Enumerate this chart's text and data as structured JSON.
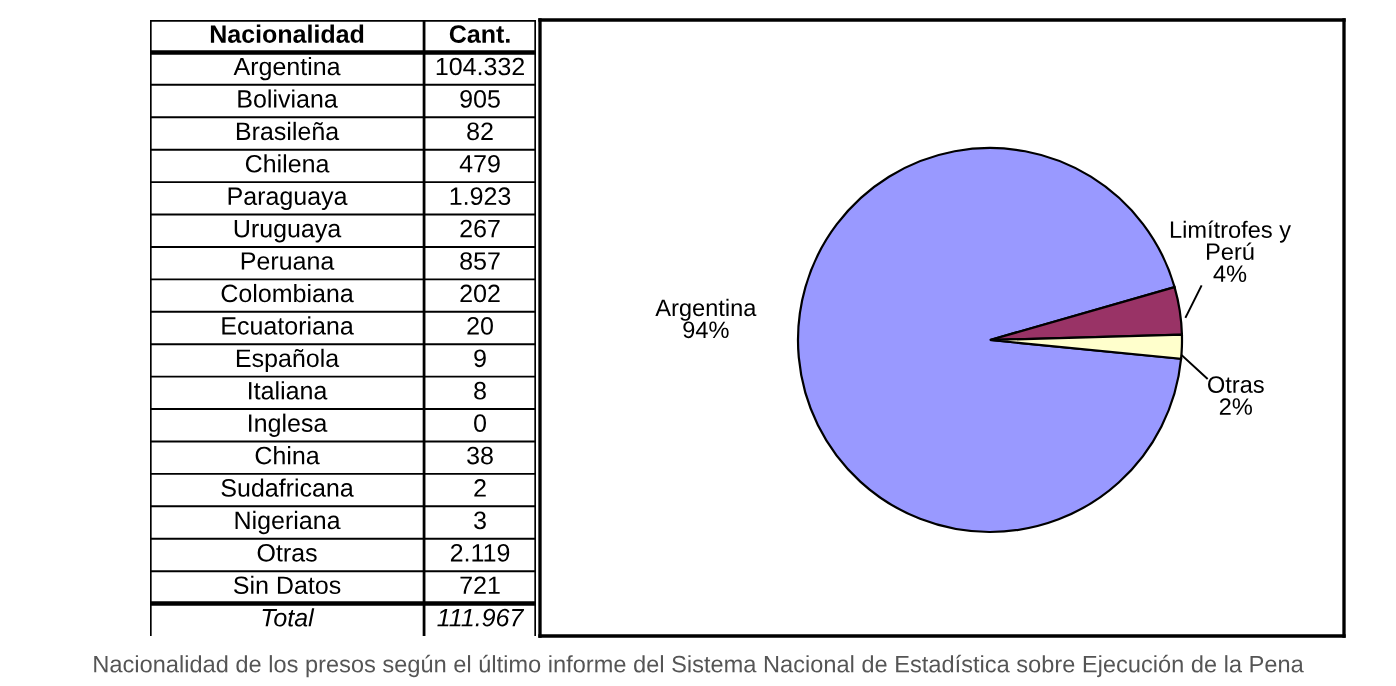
{
  "chart_data": [
    {
      "type": "other",
      "annotations": [
        "Nacionalidad",
        "Cant."
      ],
      "categories": [
        "Argentina",
        "Boliviana",
        "Brasileña",
        "Chilena",
        "Paraguaya",
        "Uruguaya",
        "Peruana",
        "Colombiana",
        "Ecuatoriana",
        "Española",
        "Italiana",
        "Inglesa",
        "China",
        "Sudafricana",
        "Nigeriana",
        "Otras",
        "Sin Datos",
        "Total"
      ],
      "value_labels": [
        "104.332",
        "905",
        "82",
        "479",
        "1.923",
        "267",
        "857",
        "202",
        "20",
        "9",
        "8",
        "0",
        "38",
        "2",
        "3",
        "2.119",
        "721",
        "111.967"
      ]
    },
    {
      "type": "pie",
      "categories": [
        "Argentina",
        "Limítrofes y\nPerú",
        "Otras"
      ],
      "values": [
        94,
        4,
        2
      ],
      "colors": [
        "#9999ff",
        "#993366",
        "#ffffcc"
      ],
      "value_labels": [
        "94%",
        "4%",
        "2%"
      ],
      "annotations": [
        "Nacionalidad de los presos según el último informe del Sistema Nacional de Estadística sobre Ejecución de la Pena"
      ]
    }
  ]
}
